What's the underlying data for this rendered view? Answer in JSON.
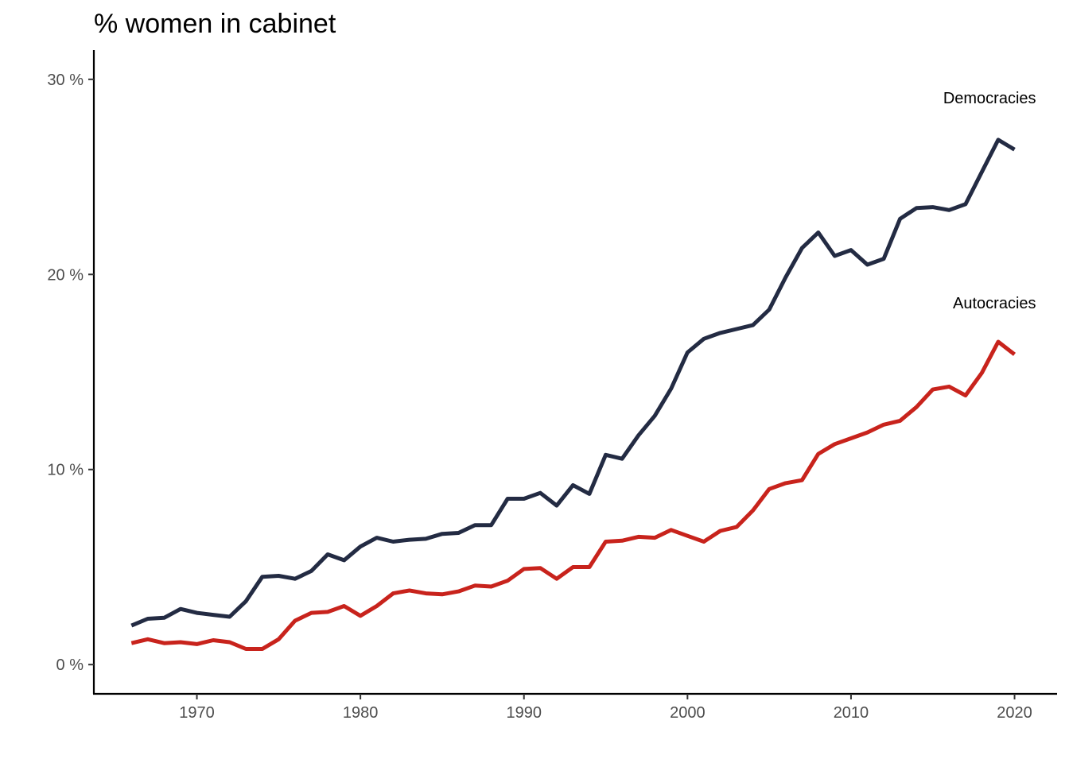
{
  "chart_data": {
    "type": "line",
    "title": "% women in cabinet",
    "xlabel": "",
    "ylabel": "",
    "xlim": [
      1963.7,
      2022.6
    ],
    "ylim": [
      -1.5,
      31.5
    ],
    "x_ticks": [
      1970,
      1980,
      1990,
      2000,
      2010,
      2020
    ],
    "y_ticks": [
      0,
      10,
      20,
      30
    ],
    "y_tick_labels": [
      "0 %",
      "10 %",
      "20 %",
      "30 %"
    ],
    "grid": false,
    "legend": "none (direct labels)",
    "x": [
      1966,
      1967,
      1968,
      1969,
      1970,
      1971,
      1972,
      1973,
      1974,
      1975,
      1976,
      1977,
      1978,
      1979,
      1980,
      1981,
      1982,
      1983,
      1984,
      1985,
      1986,
      1987,
      1988,
      1989,
      1990,
      1991,
      1992,
      1993,
      1994,
      1995,
      1996,
      1997,
      1998,
      1999,
      2000,
      2001,
      2002,
      2003,
      2004,
      2005,
      2006,
      2007,
      2008,
      2009,
      2010,
      2011,
      2012,
      2013,
      2014,
      2015,
      2016,
      2017,
      2018,
      2019,
      2020
    ],
    "series": [
      {
        "name": "Democracies",
        "color": "#232b43",
        "values": [
          2.0,
          2.35,
          2.4,
          2.85,
          2.65,
          2.55,
          2.45,
          3.25,
          4.5,
          4.55,
          4.4,
          4.8,
          5.65,
          5.35,
          6.05,
          6.5,
          6.3,
          6.4,
          6.45,
          6.7,
          6.75,
          7.15,
          7.15,
          8.5,
          8.5,
          8.8,
          8.15,
          9.2,
          8.75,
          10.75,
          10.55,
          11.75,
          12.75,
          14.15,
          16.0,
          16.7,
          17.0,
          17.2,
          17.4,
          18.2,
          19.85,
          21.35,
          22.15,
          20.95,
          21.25,
          20.5,
          20.8,
          22.85,
          23.4,
          23.45,
          23.3,
          23.6,
          25.25,
          26.9,
          26.4
        ]
      },
      {
        "name": "Autocracies",
        "color": "#c8231c",
        "values": [
          1.1,
          1.3,
          1.1,
          1.15,
          1.05,
          1.25,
          1.15,
          0.8,
          0.8,
          1.3,
          2.25,
          2.65,
          2.7,
          3.0,
          2.5,
          3.0,
          3.65,
          3.8,
          3.65,
          3.6,
          3.75,
          4.05,
          4.0,
          4.3,
          4.9,
          4.95,
          4.4,
          5.0,
          5.0,
          6.3,
          6.35,
          6.55,
          6.5,
          6.9,
          6.6,
          6.3,
          6.85,
          7.05,
          7.9,
          9.0,
          9.3,
          9.45,
          10.8,
          11.3,
          11.6,
          11.9,
          12.3,
          12.5,
          13.2,
          14.1,
          14.25,
          13.8,
          14.95,
          16.55,
          15.9
        ]
      }
    ]
  }
}
